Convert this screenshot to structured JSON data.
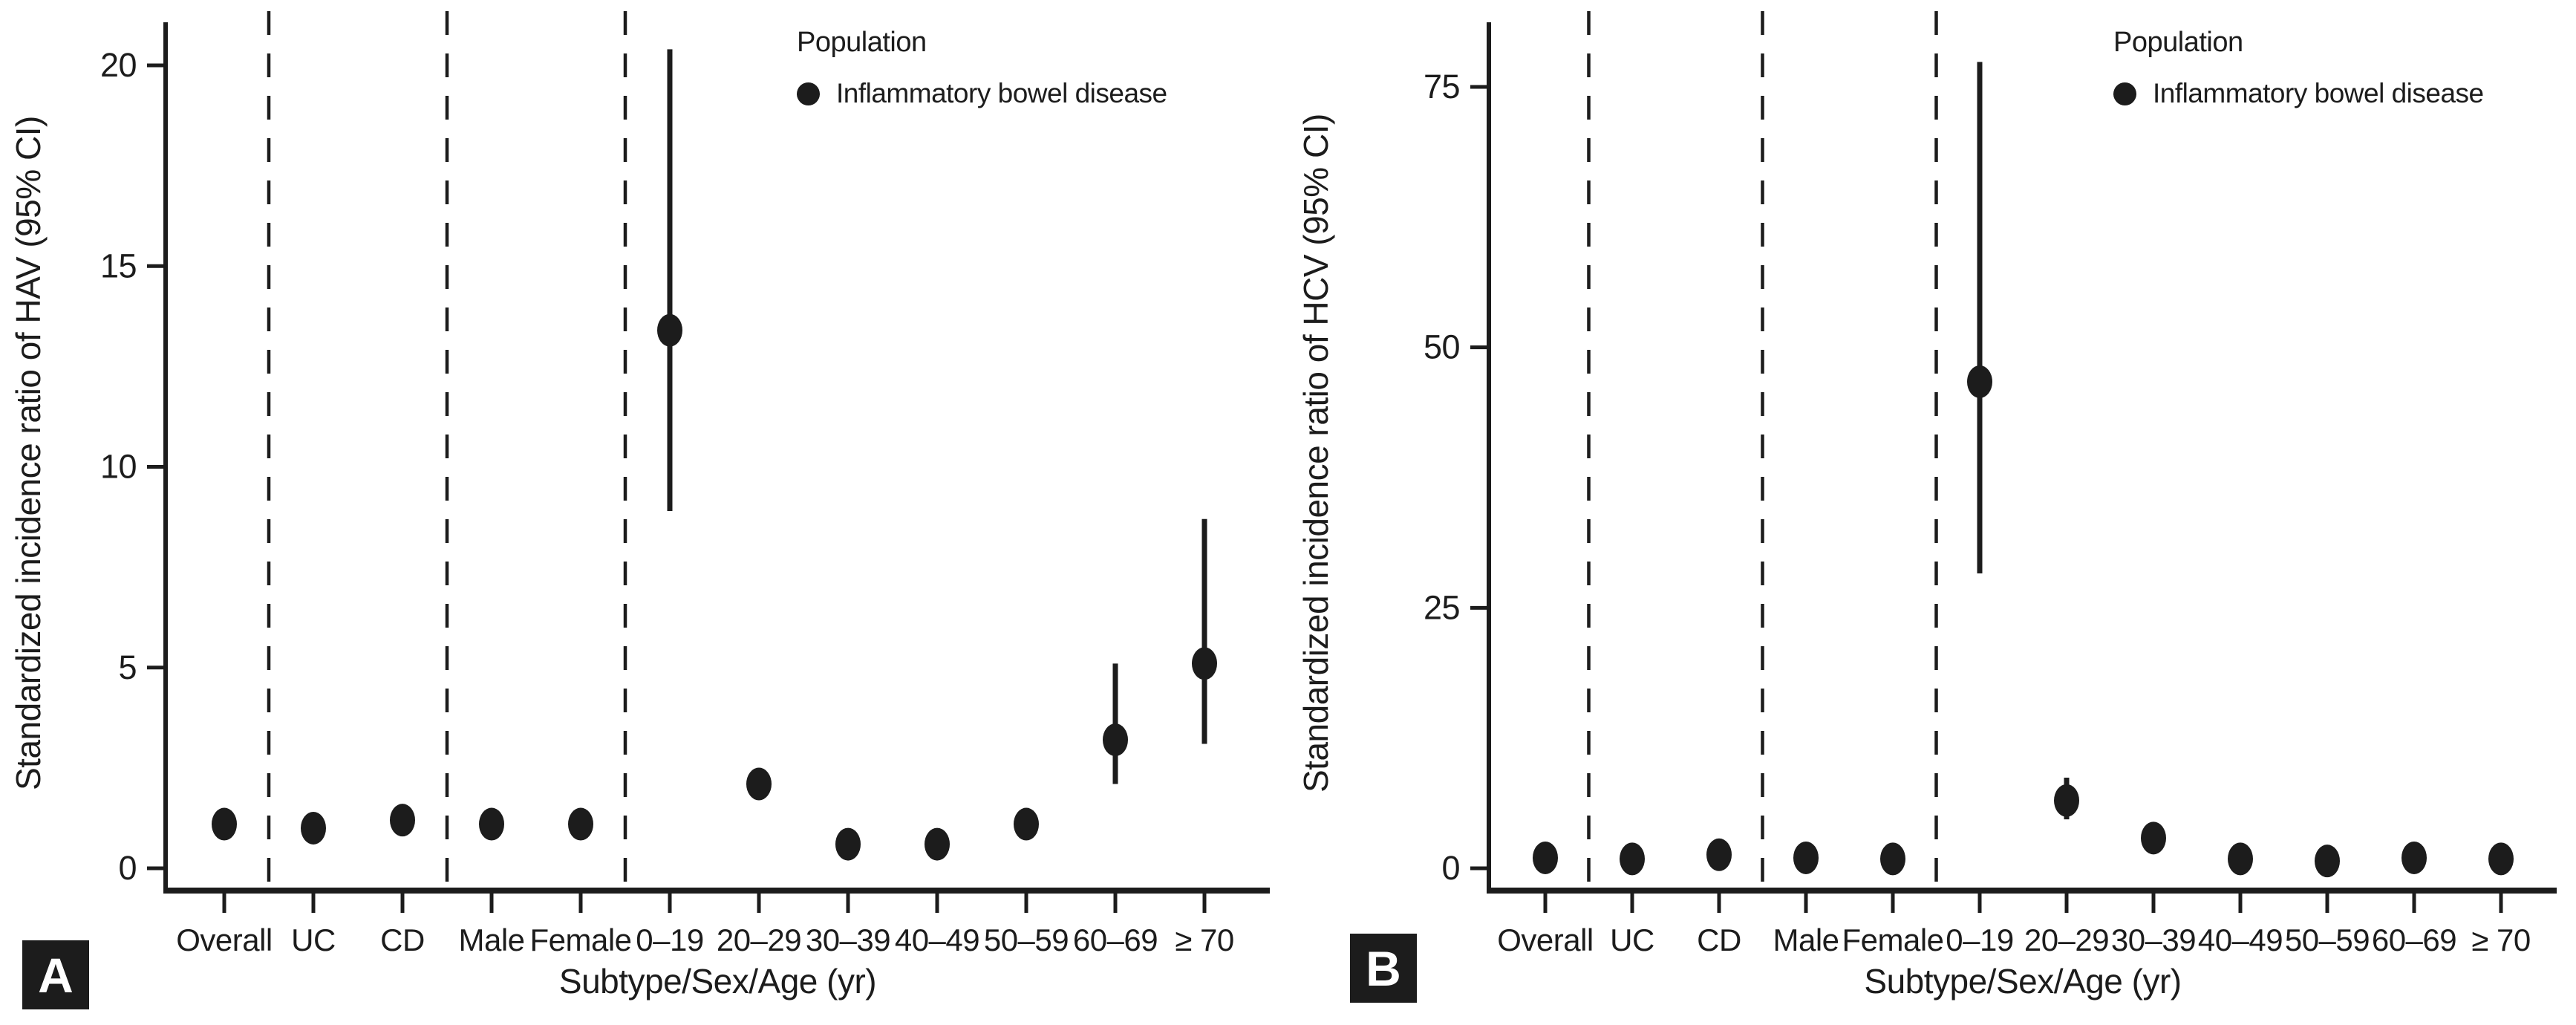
{
  "chart_data": [
    {
      "type": "scatter",
      "panel_label": "A",
      "ylabel": "Standardized incidence ratio of HAV (95% CI)",
      "xlabel": "Subtype/Sex/Age (yr)",
      "ylim": [
        0,
        21
      ],
      "yticks": [
        0,
        5,
        10,
        15,
        20
      ],
      "grid": false,
      "legend_position": "top-right-inside",
      "legend": {
        "title": "Population",
        "series_label": "Inflammatory bowel disease"
      },
      "marker_color": "#1c1c1c",
      "categories": [
        "Overall",
        "UC",
        "CD",
        "Male",
        "Female",
        "0–19",
        "20–29",
        "30–39",
        "40–49",
        "50–59",
        "60–69",
        "≥ 70"
      ],
      "separators_after": [
        0,
        2,
        4
      ],
      "points": [
        {
          "category": "Overall",
          "sir": 1.1,
          "lo": null,
          "hi": null
        },
        {
          "category": "UC",
          "sir": 1.0,
          "lo": null,
          "hi": null
        },
        {
          "category": "CD",
          "sir": 1.2,
          "lo": null,
          "hi": null
        },
        {
          "category": "Male",
          "sir": 1.1,
          "lo": null,
          "hi": null
        },
        {
          "category": "Female",
          "sir": 1.1,
          "lo": null,
          "hi": null
        },
        {
          "category": "0–19",
          "sir": 13.4,
          "lo": 8.9,
          "hi": 20.4
        },
        {
          "category": "20–29",
          "sir": 2.1,
          "lo": 1.7,
          "hi": 2.5
        },
        {
          "category": "30–39",
          "sir": 0.6,
          "lo": null,
          "hi": null
        },
        {
          "category": "40–49",
          "sir": 0.6,
          "lo": null,
          "hi": null
        },
        {
          "category": "50–59",
          "sir": 1.1,
          "lo": 0.7,
          "hi": 1.5
        },
        {
          "category": "60–69",
          "sir": 3.2,
          "lo": 2.1,
          "hi": 5.1
        },
        {
          "category": "≥ 70",
          "sir": 5.1,
          "lo": 3.1,
          "hi": 8.7
        }
      ]
    },
    {
      "type": "scatter",
      "panel_label": "B",
      "ylabel": "Standardized incidence ratio of HCV (95% CI)",
      "xlabel": "Subtype/Sex/Age (yr)",
      "ylim": [
        0,
        80
      ],
      "yticks": [
        0,
        25,
        50,
        75
      ],
      "grid": false,
      "legend_position": "top-right-inside",
      "legend": {
        "title": "Population",
        "series_label": "Inflammatory bowel disease"
      },
      "marker_color": "#1c1c1c",
      "categories": [
        "Overall",
        "UC",
        "CD",
        "Male",
        "Female",
        "0–19",
        "20–29",
        "30–39",
        "40–49",
        "50–59",
        "60–69",
        "≥ 70"
      ],
      "separators_after": [
        0,
        2,
        4
      ],
      "points": [
        {
          "category": "Overall",
          "sir": 1.0,
          "lo": null,
          "hi": null
        },
        {
          "category": "UC",
          "sir": 0.9,
          "lo": null,
          "hi": null
        },
        {
          "category": "CD",
          "sir": 1.3,
          "lo": null,
          "hi": null
        },
        {
          "category": "Male",
          "sir": 1.0,
          "lo": null,
          "hi": null
        },
        {
          "category": "Female",
          "sir": 0.9,
          "lo": null,
          "hi": null
        },
        {
          "category": "0–19",
          "sir": 46.7,
          "lo": 28.3,
          "hi": 77.4
        },
        {
          "category": "20–29",
          "sir": 6.5,
          "lo": 4.7,
          "hi": 8.7
        },
        {
          "category": "30–39",
          "sir": 2.9,
          "lo": null,
          "hi": null
        },
        {
          "category": "40–49",
          "sir": 0.9,
          "lo": null,
          "hi": null
        },
        {
          "category": "50–59",
          "sir": 0.7,
          "lo": null,
          "hi": null
        },
        {
          "category": "60–69",
          "sir": 1.0,
          "lo": null,
          "hi": null
        },
        {
          "category": "≥ 70",
          "sir": 0.9,
          "lo": null,
          "hi": null
        }
      ]
    }
  ]
}
